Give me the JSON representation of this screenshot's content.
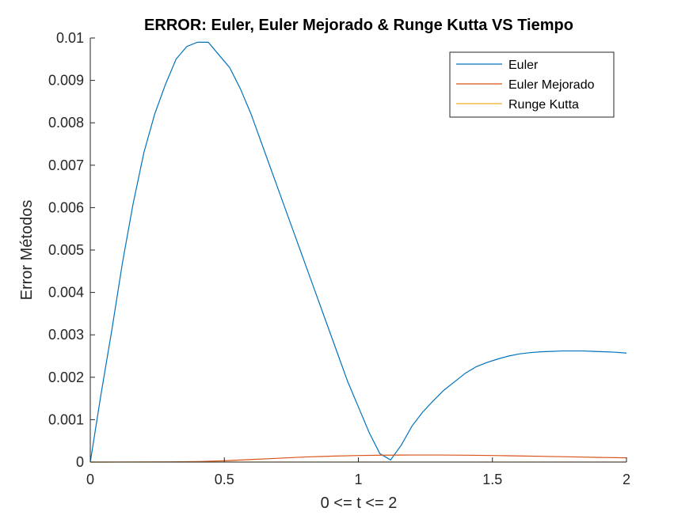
{
  "chart_data": {
    "type": "line",
    "title": "ERROR: Euler, Euler Mejorado & Runge Kutta VS Tiempo",
    "xlabel": "0 <= t <= 2",
    "ylabel": "Error Métodos",
    "xlim": [
      0,
      2
    ],
    "ylim": [
      0,
      0.01
    ],
    "xticks": [
      0,
      0.5,
      1,
      1.5,
      2
    ],
    "xtick_labels": [
      "0",
      "0.5",
      "1",
      "1.5",
      "2"
    ],
    "yticks": [
      0,
      0.001,
      0.002,
      0.003,
      0.004,
      0.005,
      0.006,
      0.007,
      0.008,
      0.009,
      0.01
    ],
    "ytick_labels": [
      "0",
      "0.001",
      "0.002",
      "0.003",
      "0.004",
      "0.005",
      "0.006",
      "0.007",
      "0.008",
      "0.009",
      "0.01"
    ],
    "grid": false,
    "legend_position": "top-right",
    "series": [
      {
        "name": "Euler",
        "color": "#0072BD",
        "x": [
          0,
          0.04,
          0.08,
          0.12,
          0.16,
          0.2,
          0.24,
          0.28,
          0.32,
          0.36,
          0.4,
          0.44,
          0.48,
          0.52,
          0.56,
          0.6,
          0.64,
          0.68,
          0.72,
          0.76,
          0.8,
          0.84,
          0.88,
          0.92,
          0.96,
          1.0,
          1.04,
          1.08,
          1.12,
          1.16,
          1.2,
          1.24,
          1.28,
          1.32,
          1.36,
          1.4,
          1.44,
          1.48,
          1.52,
          1.56,
          1.6,
          1.64,
          1.68,
          1.72,
          1.76,
          1.8,
          1.84,
          1.88,
          1.92,
          1.96,
          2.0
        ],
        "y": [
          0,
          0.0016,
          0.0031,
          0.0047,
          0.0061,
          0.0073,
          0.0082,
          0.0089,
          0.0095,
          0.0098,
          0.0099,
          0.0099,
          0.0096,
          0.0093,
          0.0088,
          0.0082,
          0.0075,
          0.0068,
          0.0061,
          0.0054,
          0.0047,
          0.004,
          0.0033,
          0.0026,
          0.0019,
          0.0013,
          0.0007,
          0.0002,
          5e-05,
          0.0004,
          0.00085,
          0.00118,
          0.00145,
          0.0017,
          0.0019,
          0.0021,
          0.00225,
          0.00235,
          0.00243,
          0.0025,
          0.00255,
          0.00258,
          0.0026,
          0.00261,
          0.00262,
          0.00262,
          0.00262,
          0.00261,
          0.0026,
          0.00259,
          0.00257
        ]
      },
      {
        "name": "Euler Mejorado",
        "color": "#D95319",
        "x": [
          0,
          0.1,
          0.2,
          0.3,
          0.4,
          0.5,
          0.6,
          0.7,
          0.8,
          0.9,
          1.0,
          1.1,
          1.2,
          1.3,
          1.4,
          1.5,
          1.6,
          1.7,
          1.8,
          1.9,
          2.0
        ],
        "y": [
          0,
          1e-06,
          3e-06,
          6e-06,
          1.2e-05,
          3e-05,
          6e-05,
          9e-05,
          0.00012,
          0.00014,
          0.000155,
          0.000163,
          0.000167,
          0.000167,
          0.000162,
          0.000155,
          0.000145,
          0.000134,
          0.000122,
          0.00011,
          0.0001
        ]
      },
      {
        "name": "Runge Kutta",
        "color": "#EDB120",
        "x": [
          0,
          0.5,
          1.0,
          1.5,
          2.0
        ],
        "y": [
          0,
          1e-06,
          1e-06,
          1e-06,
          1e-06
        ]
      }
    ]
  }
}
